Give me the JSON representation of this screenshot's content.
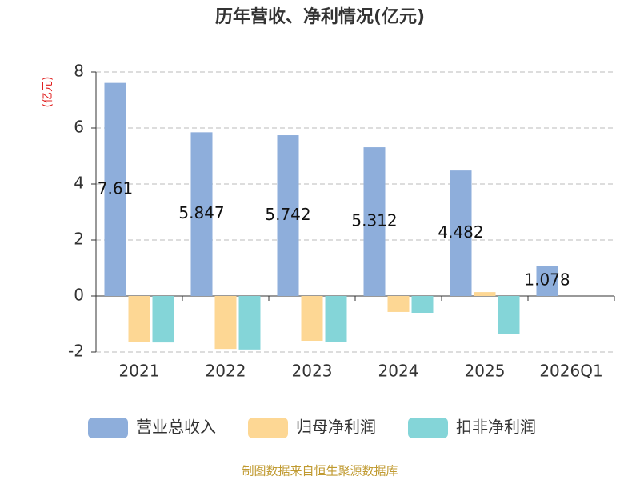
{
  "chart_data": {
    "type": "bar",
    "title": "历年营收、净利情况(亿元)",
    "y_label": "(亿元)",
    "categories": [
      "2021",
      "2022",
      "2023",
      "2024",
      "2025",
      "2026Q1"
    ],
    "series": [
      {
        "name": "营业总收入",
        "color": "#8eaedb",
        "values": [
          7.61,
          5.847,
          5.742,
          5.312,
          4.482,
          1.078
        ],
        "data_labels": true
      },
      {
        "name": "归母净利润",
        "color": "#fdd794",
        "values": [
          -1.63,
          -1.89,
          -1.6,
          -0.57,
          0.14,
          null
        ]
      },
      {
        "name": "扣非净利润",
        "color": "#84d5d8",
        "values": [
          -1.66,
          -1.91,
          -1.63,
          -0.6,
          -1.37,
          null
        ]
      }
    ],
    "ylim": [
      -2,
      8
    ],
    "yticks": [
      -2,
      0,
      2,
      4,
      6,
      8
    ],
    "grid": true,
    "legend": "bottom",
    "source": "制图数据来自恒生聚源数据库"
  }
}
